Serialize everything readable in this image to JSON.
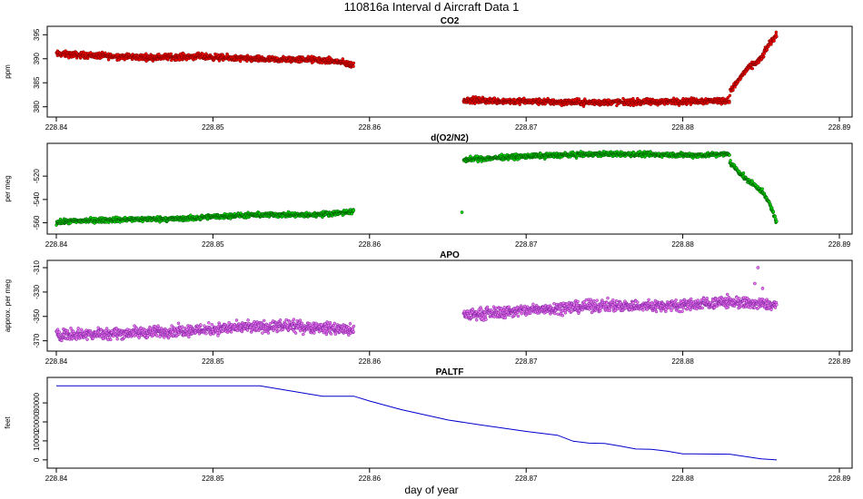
{
  "figure": {
    "title": "110816a   Interval d Aircraft Data 1",
    "xlabel": "day of year"
  },
  "chart_data": [
    {
      "type": "scatter",
      "title": "CO2",
      "ylabel": "ppm",
      "xlim": [
        228.84,
        228.89
      ],
      "ylim": [
        379,
        396
      ],
      "x_ticks": [
        "228.84",
        "228.85",
        "228.86",
        "228.87",
        "228.88",
        "228.89"
      ],
      "y_ticks": [
        380,
        385,
        390,
        395
      ],
      "color": "#ff0000",
      "outline_color": "#7a0000",
      "noise": 0.55,
      "segments": [
        {
          "x": [
            228.84,
            228.843,
            228.846,
            228.849,
            228.852,
            228.854,
            228.856,
            228.858,
            228.859
          ],
          "y": [
            391.0,
            390.6,
            390.3,
            390.5,
            390.0,
            389.8,
            389.9,
            389.4,
            388.6
          ]
        },
        {
          "x": [
            228.866,
            228.87,
            228.874,
            228.878,
            228.881,
            228.883
          ],
          "y": [
            381.4,
            381.1,
            380.9,
            381.0,
            381.2,
            381.3
          ]
        },
        {
          "x": [
            228.883,
            228.884,
            228.885,
            228.8855,
            228.886
          ],
          "y": [
            383.0,
            387.5,
            390.0,
            393.0,
            395.0
          ]
        }
      ]
    },
    {
      "type": "scatter",
      "title": "d(O2/N2)",
      "ylabel": "per meg",
      "xlim": [
        228.84,
        228.89
      ],
      "ylim": [
        -565,
        -495
      ],
      "x_ticks": [
        "228.84",
        "228.85",
        "228.86",
        "228.87",
        "228.88",
        "228.89"
      ],
      "y_ticks": [
        -560,
        -540,
        -520
      ],
      "color": "#00dd00",
      "outline_color": "#005500",
      "noise": 1.8,
      "segments": [
        {
          "x": [
            228.84,
            228.842,
            228.845,
            228.848,
            228.851,
            228.854,
            228.856,
            228.859
          ],
          "y": [
            -559.5,
            -558.0,
            -557.0,
            -556.5,
            -554.0,
            -553.0,
            -553.5,
            -550.5
          ]
        },
        {
          "x": [
            228.866,
            228.869,
            228.872,
            228.875,
            228.878,
            228.881,
            228.883
          ],
          "y": [
            -506.0,
            -503.5,
            -502.0,
            -501.0,
            -501.5,
            -502.0,
            -501.0
          ]
        },
        {
          "x": [
            228.883,
            228.884,
            228.885,
            228.8856,
            228.886
          ],
          "y": [
            -508.0,
            -522.0,
            -532.0,
            -545.0,
            -560.0
          ]
        }
      ],
      "extra_points": [
        {
          "x": 228.8659,
          "y": -551
        }
      ]
    },
    {
      "type": "scatter",
      "title": "APO",
      "ylabel": "approx. per meg",
      "xlim": [
        228.84,
        228.89
      ],
      "ylim": [
        -374,
        -307
      ],
      "x_ticks": [
        "228.84",
        "228.85",
        "228.86",
        "228.87",
        "228.88",
        "228.89"
      ],
      "y_ticks": [
        -370,
        -350,
        -330,
        -310
      ],
      "color": "#ee77ee",
      "outline_color": "#7a1fa2",
      "noise": 4.0,
      "segments": [
        {
          "x": [
            228.84,
            228.843,
            228.846,
            228.849,
            228.852,
            228.855,
            228.858,
            228.859
          ],
          "y": [
            -365.0,
            -364.0,
            -363.0,
            -361.0,
            -359.0,
            -358.0,
            -360.0,
            -362.0
          ]
        },
        {
          "x": [
            228.866,
            228.869,
            228.872,
            228.875,
            228.878,
            228.881,
            228.883,
            228.886
          ],
          "y": [
            -349.0,
            -346.0,
            -343.0,
            -341.0,
            -341.5,
            -340.0,
            -338.0,
            -341.0
          ]
        }
      ],
      "extra_points": [
        {
          "x": 228.8848,
          "y": -310
        },
        {
          "x": 228.8846,
          "y": -323
        },
        {
          "x": 228.8851,
          "y": -327
        }
      ]
    },
    {
      "type": "line",
      "title": "PALTF",
      "ylabel": "feet",
      "xlim": [
        228.84,
        228.89
      ],
      "ylim": [
        -1500,
        41500
      ],
      "x_ticks": [
        "228.84",
        "228.85",
        "228.86",
        "228.87",
        "228.88",
        "228.89"
      ],
      "y_ticks": [
        0,
        10000,
        20000,
        30000
      ],
      "color": "#0000cc",
      "x": [
        228.84,
        228.853,
        228.857,
        228.859,
        228.86,
        228.862,
        228.865,
        228.867,
        228.87,
        228.872,
        228.873,
        228.874,
        228.875,
        228.876,
        228.877,
        228.878,
        228.879,
        228.88,
        228.883,
        228.885,
        228.886
      ],
      "y": [
        39000,
        39000,
        33500,
        33500,
        31000,
        26500,
        21000,
        18500,
        15000,
        13000,
        9800,
        8800,
        8700,
        7300,
        5700,
        5500,
        4600,
        3200,
        3000,
        500,
        0
      ]
    }
  ]
}
